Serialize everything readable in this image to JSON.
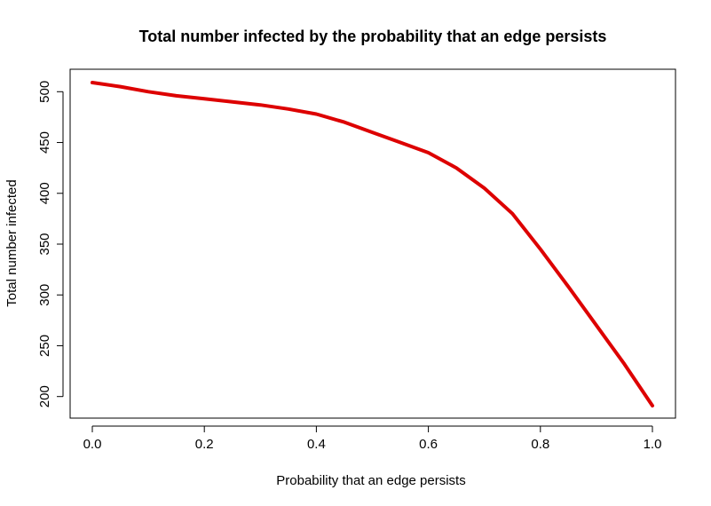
{
  "chart_data": {
    "type": "line",
    "title": "Total number infected by the probability that an edge persists",
    "xlabel": "Probability that an edge persists",
    "ylabel": "Total number infected",
    "xlim": [
      0.0,
      1.0
    ],
    "ylim": [
      191,
      509
    ],
    "xticks": [
      "0.0",
      "0.2",
      "0.4",
      "0.6",
      "0.8",
      "1.0"
    ],
    "xtick_values": [
      0.0,
      0.2,
      0.4,
      0.6,
      0.8,
      1.0
    ],
    "yticks": [
      "200",
      "250",
      "300",
      "350",
      "400",
      "450",
      "500"
    ],
    "ytick_values": [
      200,
      250,
      300,
      350,
      400,
      450,
      500
    ],
    "series": [
      {
        "name": "Total number infected",
        "color": "#dd0000",
        "x": [
          0.0,
          0.05,
          0.1,
          0.15,
          0.2,
          0.25,
          0.3,
          0.35,
          0.4,
          0.45,
          0.5,
          0.55,
          0.6,
          0.65,
          0.7,
          0.75,
          0.8,
          0.85,
          0.9,
          0.95,
          1.0
        ],
        "y": [
          509,
          505,
          500,
          496,
          493,
          490,
          487,
          483,
          478,
          470,
          460,
          450,
          440,
          425,
          405,
          380,
          345,
          308,
          270,
          232,
          191
        ]
      }
    ]
  }
}
